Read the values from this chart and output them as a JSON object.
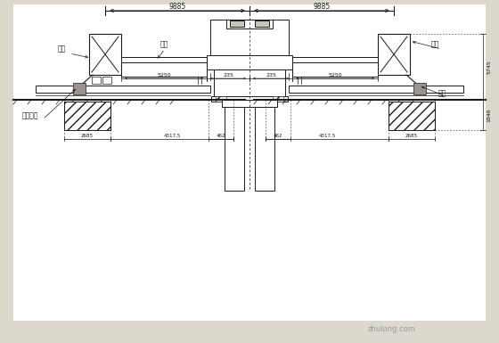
{
  "bg_color": "#ddd8ce",
  "line_color": "#1a1a1a",
  "label_zhuliang": "主梁",
  "label_hengliang": "横梁",
  "label_zhicheng": "支橕托架",
  "label_xiaoche": "小车",
  "label_dunding": "墅顶",
  "dim_9885": "9885",
  "dim_5250": "5250",
  "dim_235": "235",
  "dim_2685": "2685",
  "dim_4317": "4317.5",
  "dim_462": "462",
  "dim_5745": "5745",
  "dim_1846": "1846"
}
